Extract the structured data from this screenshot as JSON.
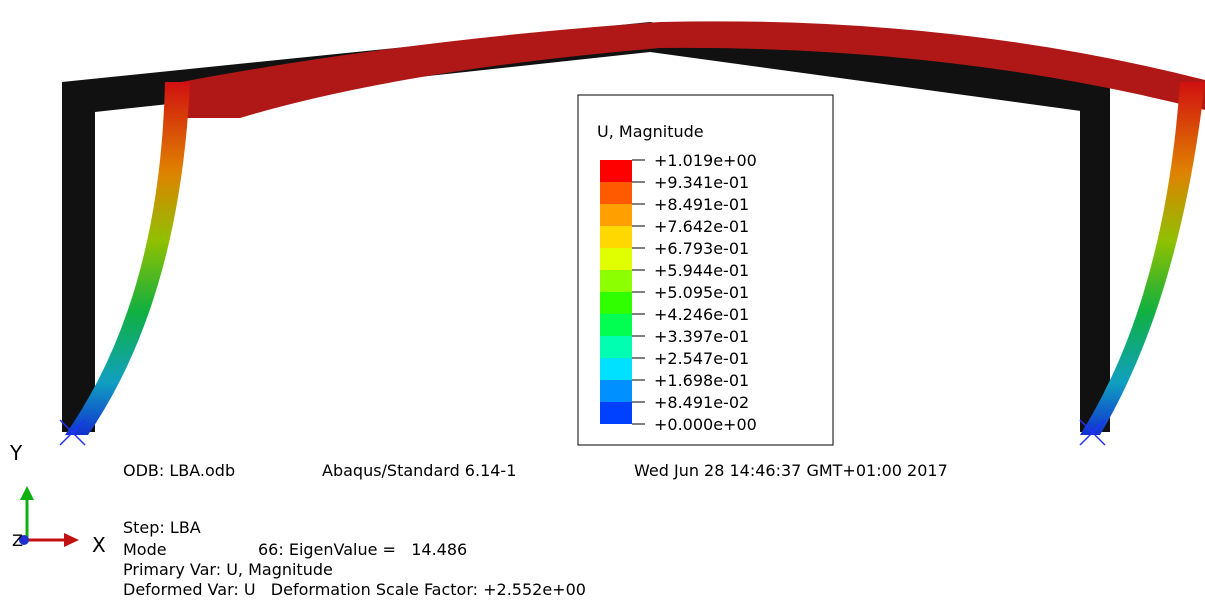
{
  "legend": {
    "title": "U, Magnitude",
    "labels": [
      "+1.019e+00",
      "+9.341e-01",
      "+8.491e-01",
      "+7.642e-01",
      "+6.793e-01",
      "+5.944e-01",
      "+5.095e-01",
      "+4.246e-01",
      "+3.397e-01",
      "+2.547e-01",
      "+1.698e-01",
      "+8.491e-02",
      "+0.000e+00"
    ],
    "colors": [
      "#ff0000",
      "#ff5a00",
      "#ffa000",
      "#ffd800",
      "#e0ff00",
      "#8cff00",
      "#30ff00",
      "#00ff50",
      "#00ffb0",
      "#00e0ff",
      "#0090ff",
      "#0040ff"
    ]
  },
  "info": {
    "odb": "ODB: LBA.odb",
    "version": "Abaqus/Standard 6.14-1",
    "date": "Wed Jun 28 14:46:37 GMT+01:00 2017"
  },
  "step": {
    "step": "Step: LBA",
    "mode_label": "Mode",
    "mode": "66: EigenValue =   14.486",
    "primary": "Primary Var: U, Magnitude",
    "deformed": "Deformed Var: U   Deformation Scale Factor: +2.552e+00"
  },
  "triad": {
    "x": "X",
    "y": "Y",
    "z": "Z"
  }
}
